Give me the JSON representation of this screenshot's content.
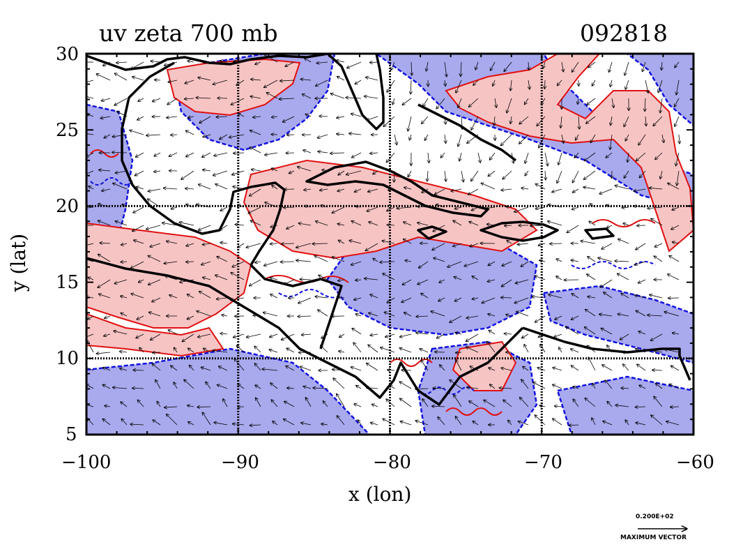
{
  "title": "uv zeta 700 mb",
  "date_label": "092818",
  "x_axis": {
    "label": "x (lon)",
    "ticks": [
      "−100",
      "−90",
      "−80",
      "−70",
      "−60"
    ]
  },
  "y_axis": {
    "label": "y (lat)",
    "ticks": [
      "30",
      "25",
      "20",
      "15",
      "10",
      "5"
    ]
  },
  "extent": {
    "lon": [
      -100,
      -60
    ],
    "lat": [
      5,
      30
    ]
  },
  "grid_lines": {
    "lon": [
      -90,
      -80,
      -70
    ],
    "lat": [
      10,
      20
    ]
  },
  "legend": {
    "value": "0.200E+02",
    "caption": "MAXIMUM VECTOR"
  },
  "colors": {
    "positive_fill": "#f7c4c4",
    "positive_line": "#e01010",
    "negative_fill": "#a9a9ee",
    "negative_line": "#1010e0",
    "coast": "#000000"
  }
}
